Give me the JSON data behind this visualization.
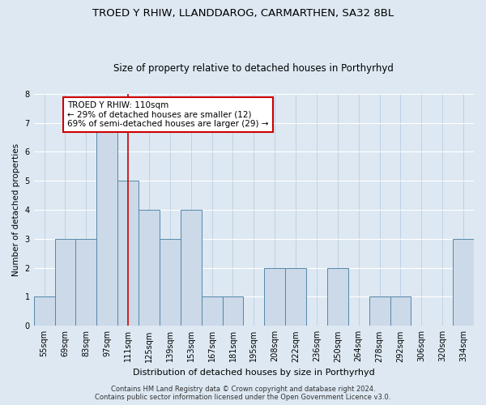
{
  "title": "TROED Y RHIW, LLANDDAROG, CARMARTHEN, SA32 8BL",
  "subtitle": "Size of property relative to detached houses in Porthyrhyd",
  "xlabel": "Distribution of detached houses by size in Porthyrhyd",
  "ylabel": "Number of detached properties",
  "categories": [
    "55sqm",
    "69sqm",
    "83sqm",
    "97sqm",
    "111sqm",
    "125sqm",
    "139sqm",
    "153sqm",
    "167sqm",
    "181sqm",
    "195sqm",
    "208sqm",
    "222sqm",
    "236sqm",
    "250sqm",
    "264sqm",
    "278sqm",
    "292sqm",
    "306sqm",
    "320sqm",
    "334sqm"
  ],
  "values": [
    1,
    3,
    3,
    7,
    5,
    4,
    3,
    4,
    1,
    1,
    0,
    2,
    2,
    0,
    2,
    0,
    1,
    1,
    0,
    0,
    3
  ],
  "bar_color": "#ccd9e8",
  "bar_edge_color": "#5588aa",
  "highlight_index": 4,
  "highlight_line_color": "#cc0000",
  "annotation_text": "TROED Y RHIW: 110sqm\n← 29% of detached houses are smaller (12)\n69% of semi-detached houses are larger (29) →",
  "annotation_box_color": "#ffffff",
  "annotation_box_edge": "#cc0000",
  "ylim": [
    0,
    8
  ],
  "yticks": [
    0,
    1,
    2,
    3,
    4,
    5,
    6,
    7,
    8
  ],
  "footer": "Contains HM Land Registry data © Crown copyright and database right 2024.\nContains public sector information licensed under the Open Government Licence v3.0.",
  "background_color": "#dde8f2",
  "plot_bg_color": "#dde8f2",
  "title_fontsize": 9.5,
  "subtitle_fontsize": 8.5
}
